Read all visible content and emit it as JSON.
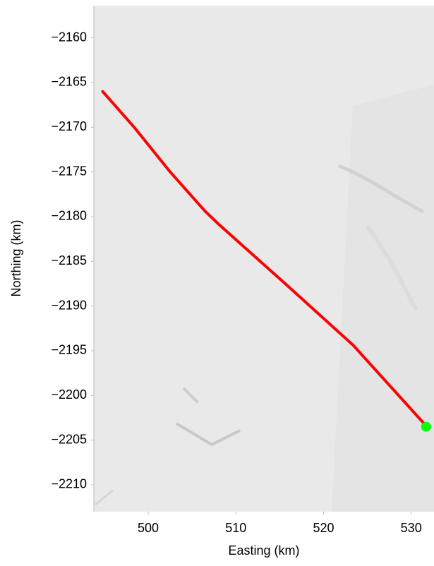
{
  "chart_data": {
    "type": "line",
    "xlabel": "Easting (km)",
    "ylabel": "Northing (km)",
    "xlim": [
      493.8,
      532.6
    ],
    "xticks": [
      500,
      510,
      520,
      530
    ],
    "ylim": [
      -2213.0,
      -2156.4
    ],
    "yticks": [
      {
        "value": -2160,
        "label": "−2160"
      },
      {
        "value": -2165,
        "label": "−2165"
      },
      {
        "value": -2170,
        "label": "−2170"
      },
      {
        "value": -2175,
        "label": "−2175"
      },
      {
        "value": -2180,
        "label": "−2180"
      },
      {
        "value": -2185,
        "label": "−2185"
      },
      {
        "value": -2190,
        "label": "−2190"
      },
      {
        "value": -2195,
        "label": "−2195"
      },
      {
        "value": -2200,
        "label": "−2200"
      },
      {
        "value": -2205,
        "label": "−2205"
      },
      {
        "value": -2210,
        "label": "−2210"
      }
    ],
    "x": [
      494.8,
      498.4,
      502.5,
      506.5,
      508.1,
      515.4,
      523.4,
      531.7
    ],
    "values": [
      -2166.0,
      -2170.0,
      -2175.0,
      -2179.4,
      -2180.9,
      -2187.3,
      -2194.4,
      -2203.4
    ],
    "color": "#ff0000",
    "marker": {
      "x": 531.7,
      "y": -2203.5,
      "color": "#00ff00"
    }
  }
}
